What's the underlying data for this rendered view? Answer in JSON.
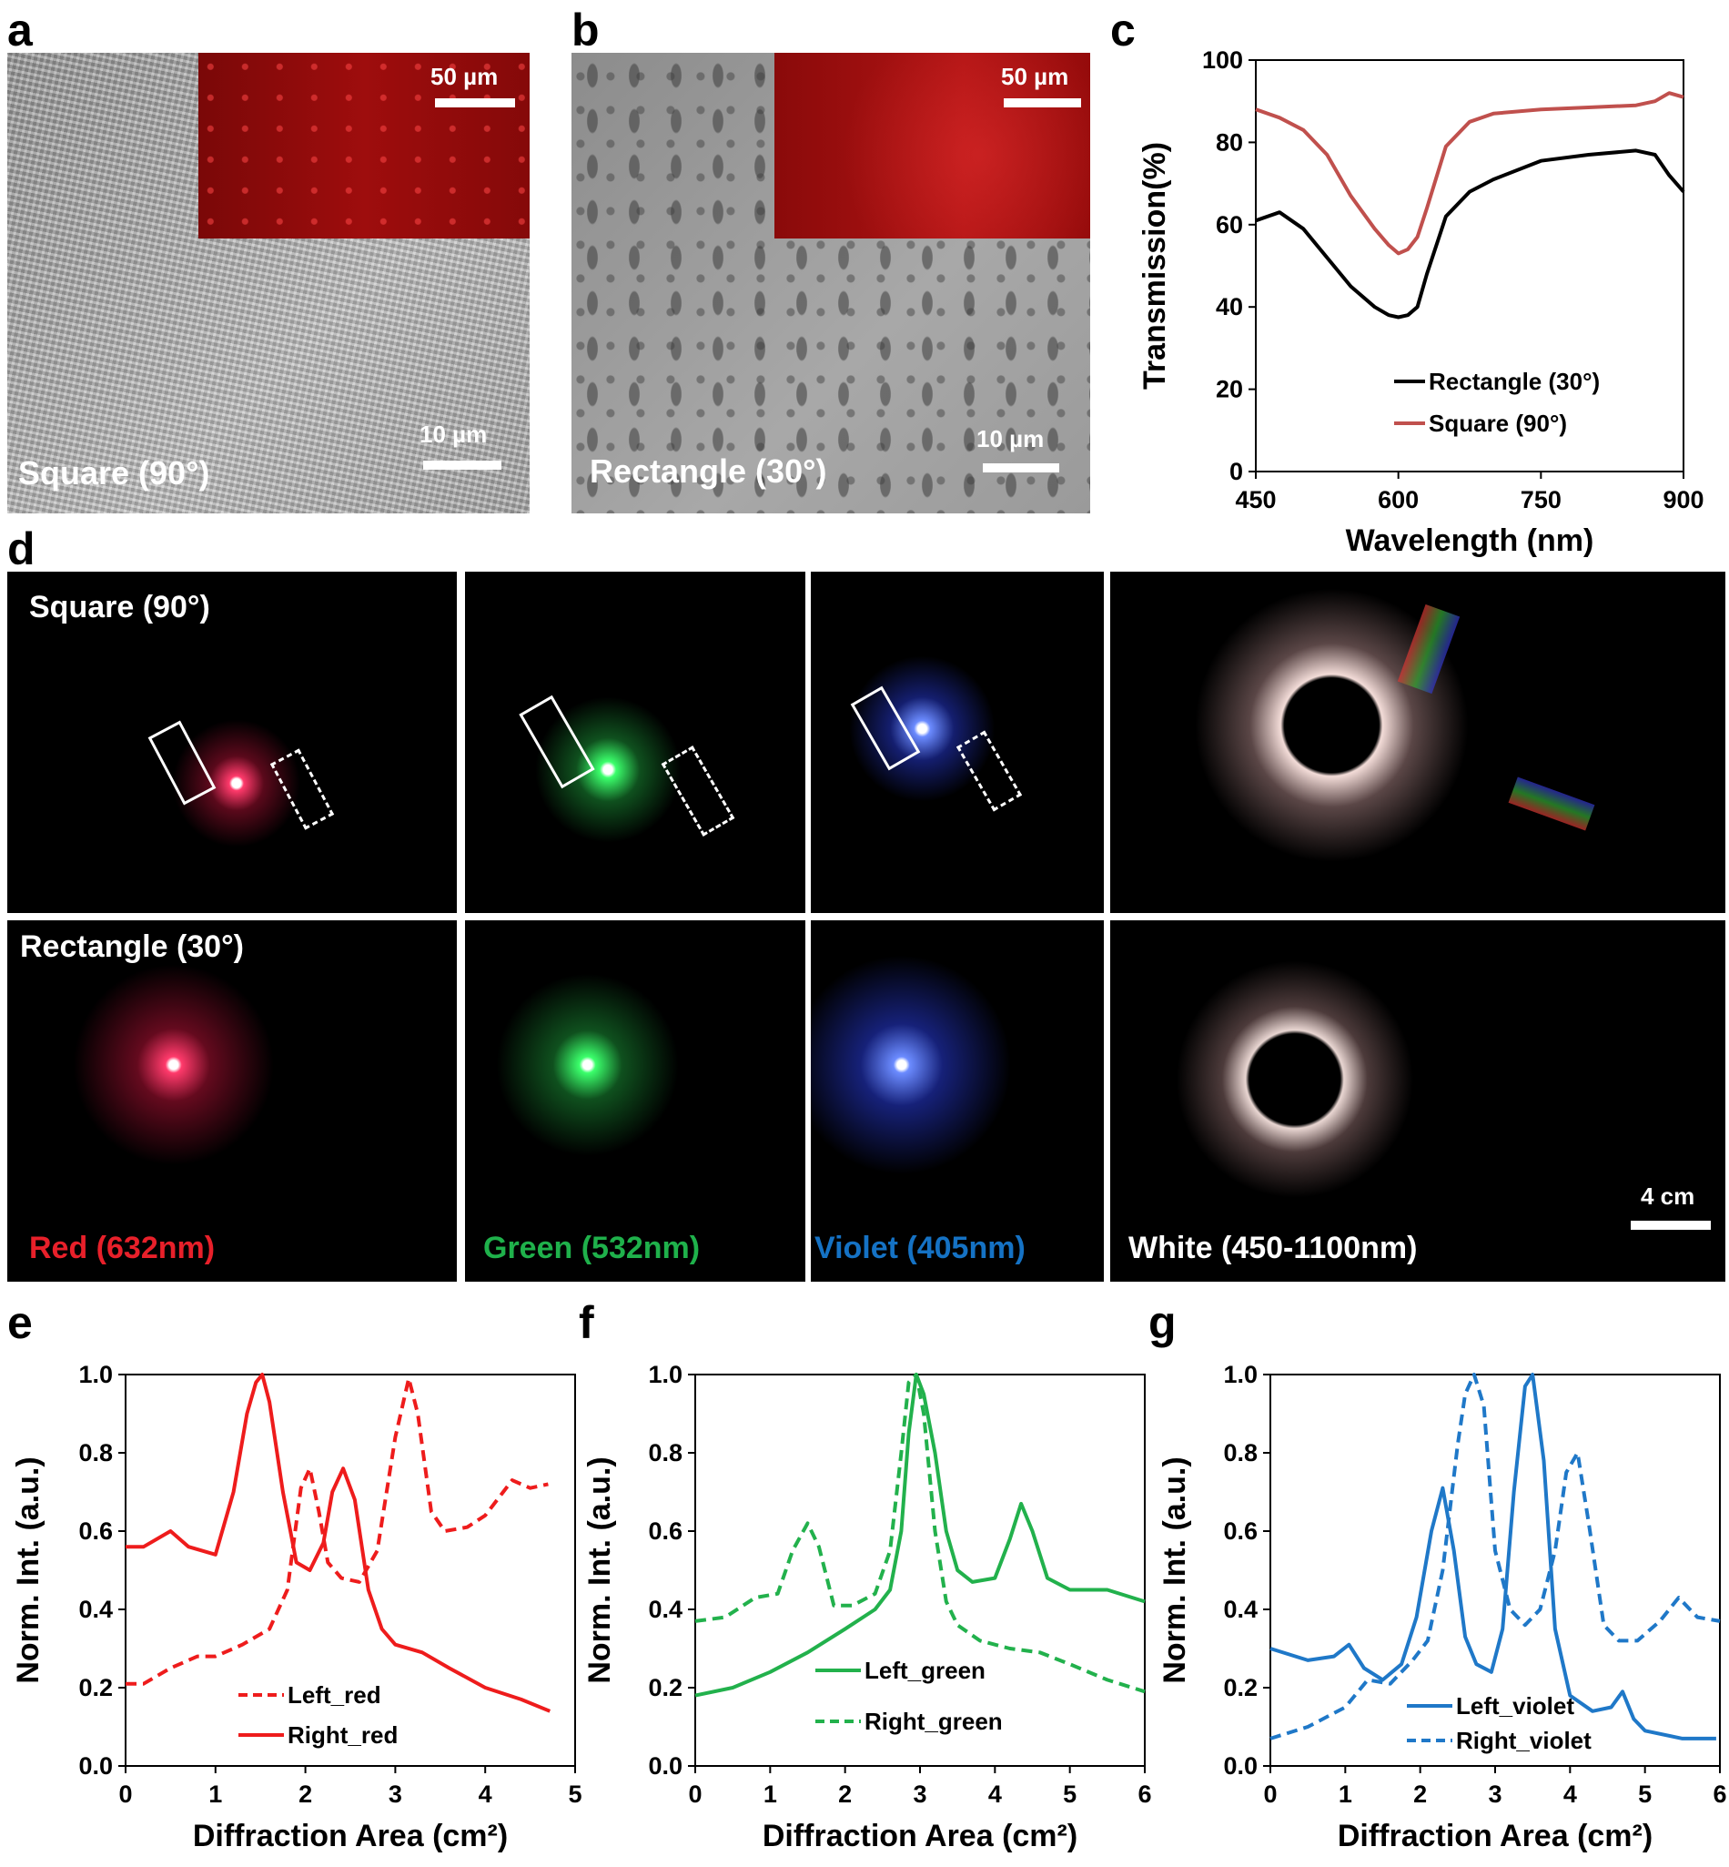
{
  "panels": {
    "a": {
      "label": "a",
      "caption": "Square (90°)",
      "scalebar": "10 µm",
      "inset_scalebar": "50 µm"
    },
    "b": {
      "label": "b",
      "caption": "Rectangle (30°)",
      "scalebar": "10 µm",
      "inset_scalebar": "50 µm"
    },
    "c": {
      "label": "c"
    },
    "d": {
      "label": "d",
      "rows": [
        "Square (90°)",
        "Rectangle (30°)"
      ],
      "columns": [
        {
          "label": "Red (632nm)",
          "color": "#e8202a"
        },
        {
          "label": "Green (532nm)",
          "color": "#1fb14b"
        },
        {
          "label": "Violet (405nm)",
          "color": "#1572c4"
        },
        {
          "label": "White (450-1100nm)",
          "color": "#ffffff"
        }
      ],
      "scalebar": "4 cm"
    },
    "e": {
      "label": "e"
    },
    "f": {
      "label": "f"
    },
    "g": {
      "label": "g"
    }
  },
  "chart_data": [
    {
      "id": "c",
      "type": "line",
      "xlabel": "Wavelength (nm)",
      "ylabel": "Transmission(%)",
      "xlim": [
        450,
        900
      ],
      "ylim": [
        0,
        100
      ],
      "xticks": [
        450,
        600,
        750,
        900
      ],
      "yticks": [
        0,
        20,
        40,
        60,
        80,
        100
      ],
      "legend_position": "bottom-center",
      "series": [
        {
          "name": "Rectangle (30°)",
          "color": "#000000",
          "dash": "solid",
          "x": [
            450,
            475,
            500,
            525,
            550,
            575,
            590,
            600,
            610,
            620,
            630,
            650,
            675,
            700,
            750,
            800,
            850,
            870,
            885,
            900
          ],
          "y": [
            61,
            63,
            59,
            52,
            45,
            40,
            38,
            37.5,
            38,
            40,
            48,
            62,
            68,
            71,
            75.5,
            77,
            78,
            77,
            72,
            68
          ]
        },
        {
          "name": "Square (90°)",
          "color": "#c0504d",
          "dash": "solid",
          "x": [
            450,
            475,
            500,
            525,
            550,
            575,
            590,
            600,
            610,
            620,
            630,
            650,
            675,
            700,
            750,
            800,
            850,
            870,
            885,
            900
          ],
          "y": [
            88,
            86,
            83,
            77,
            67,
            59,
            55,
            53,
            54,
            57,
            64,
            79,
            85,
            87,
            88,
            88.5,
            89,
            90,
            92,
            91
          ]
        }
      ]
    },
    {
      "id": "e",
      "type": "line",
      "xlabel": "Diffraction Area (cm²)",
      "ylabel": "Norm. Int. (a.u.)",
      "xlim": [
        0,
        5
      ],
      "ylim": [
        0,
        1.0
      ],
      "xticks": [
        0,
        1,
        2,
        3,
        4,
        5
      ],
      "yticks": [
        "0.0",
        "0.2",
        "0.4",
        "0.6",
        "0.8",
        "1.0"
      ],
      "legend_position": "bottom-center",
      "series": [
        {
          "name": "Left_red",
          "color": "#ee1c1c",
          "dash": "dashed",
          "x": [
            0,
            0.2,
            0.5,
            0.8,
            1.0,
            1.3,
            1.6,
            1.8,
            1.95,
            2.05,
            2.15,
            2.25,
            2.4,
            2.6,
            2.8,
            3.0,
            3.15,
            3.25,
            3.4,
            3.55,
            3.8,
            4.0,
            4.2,
            4.3,
            4.5,
            4.7
          ],
          "y": [
            0.21,
            0.21,
            0.25,
            0.28,
            0.28,
            0.31,
            0.35,
            0.45,
            0.71,
            0.76,
            0.65,
            0.52,
            0.48,
            0.47,
            0.55,
            0.84,
            0.99,
            0.9,
            0.65,
            0.6,
            0.61,
            0.64,
            0.7,
            0.73,
            0.71,
            0.72
          ]
        },
        {
          "name": "Right_red",
          "color": "#ee1c1c",
          "dash": "solid",
          "x": [
            0,
            0.2,
            0.5,
            0.7,
            1.0,
            1.2,
            1.35,
            1.45,
            1.52,
            1.6,
            1.75,
            1.9,
            2.05,
            2.2,
            2.3,
            2.42,
            2.55,
            2.7,
            2.85,
            3.0,
            3.3,
            3.6,
            4.0,
            4.4,
            4.72
          ],
          "y": [
            0.56,
            0.56,
            0.6,
            0.56,
            0.54,
            0.7,
            0.9,
            0.98,
            1.0,
            0.93,
            0.7,
            0.52,
            0.5,
            0.57,
            0.7,
            0.76,
            0.68,
            0.45,
            0.35,
            0.31,
            0.29,
            0.25,
            0.2,
            0.17,
            0.14
          ]
        }
      ]
    },
    {
      "id": "f",
      "type": "line",
      "xlabel": "Diffraction Area (cm²)",
      "ylabel": "Norm. Int. (a.u.)",
      "xlim": [
        0,
        6
      ],
      "ylim": [
        0,
        1.0
      ],
      "xticks": [
        0,
        1,
        2,
        3,
        4,
        5,
        6
      ],
      "yticks": [
        "0.0",
        "0.2",
        "0.4",
        "0.6",
        "0.8",
        "1.0"
      ],
      "legend_position": "bottom-center",
      "series": [
        {
          "name": "Left_green",
          "color": "#22b14c",
          "dash": "solid",
          "x": [
            0,
            0.5,
            1.0,
            1.5,
            2.0,
            2.4,
            2.6,
            2.75,
            2.85,
            2.95,
            3.05,
            3.2,
            3.35,
            3.5,
            3.7,
            4.0,
            4.2,
            4.35,
            4.5,
            4.7,
            5.0,
            5.5,
            6.0
          ],
          "y": [
            0.18,
            0.2,
            0.24,
            0.29,
            0.35,
            0.4,
            0.45,
            0.6,
            0.85,
            1.0,
            0.95,
            0.8,
            0.6,
            0.5,
            0.47,
            0.48,
            0.58,
            0.67,
            0.6,
            0.48,
            0.45,
            0.45,
            0.42
          ]
        },
        {
          "name": "Right_green",
          "color": "#22b14c",
          "dash": "dashed",
          "x": [
            0,
            0.4,
            0.8,
            1.1,
            1.3,
            1.5,
            1.65,
            1.85,
            2.1,
            2.4,
            2.6,
            2.75,
            2.85,
            2.95,
            3.05,
            3.2,
            3.35,
            3.5,
            3.8,
            4.2,
            4.6,
            5.0,
            5.5,
            6.0
          ],
          "y": [
            0.37,
            0.38,
            0.43,
            0.44,
            0.55,
            0.62,
            0.56,
            0.41,
            0.41,
            0.44,
            0.55,
            0.8,
            0.98,
            1.0,
            0.9,
            0.6,
            0.42,
            0.36,
            0.32,
            0.3,
            0.29,
            0.26,
            0.22,
            0.19
          ]
        }
      ]
    },
    {
      "id": "g",
      "type": "line",
      "xlabel": "Diffraction Area (cm²)",
      "ylabel": "Norm. Int. (a.u.)",
      "xlim": [
        0,
        6
      ],
      "ylim": [
        0,
        1.0
      ],
      "xticks": [
        0,
        1,
        2,
        3,
        4,
        5,
        6
      ],
      "yticks": [
        "0.0",
        "0.2",
        "0.4",
        "0.6",
        "0.8",
        "1.0"
      ],
      "legend_position": "bottom-center",
      "series": [
        {
          "name": "Left_violet",
          "color": "#1f78c8",
          "dash": "solid",
          "x": [
            0,
            0.5,
            0.85,
            1.05,
            1.25,
            1.5,
            1.75,
            1.95,
            2.15,
            2.3,
            2.45,
            2.6,
            2.75,
            2.95,
            3.1,
            3.25,
            3.4,
            3.5,
            3.65,
            3.8,
            4.0,
            4.3,
            4.55,
            4.7,
            4.85,
            5.0,
            5.5,
            5.95
          ],
          "y": [
            0.3,
            0.27,
            0.28,
            0.31,
            0.25,
            0.22,
            0.26,
            0.38,
            0.6,
            0.71,
            0.55,
            0.33,
            0.26,
            0.24,
            0.35,
            0.7,
            0.97,
            1.0,
            0.78,
            0.35,
            0.18,
            0.14,
            0.15,
            0.19,
            0.12,
            0.09,
            0.07,
            0.07
          ]
        },
        {
          "name": "Right_violet",
          "color": "#1f78c8",
          "dash": "dashed",
          "x": [
            0,
            0.5,
            1.0,
            1.3,
            1.6,
            1.9,
            2.1,
            2.3,
            2.5,
            2.6,
            2.72,
            2.85,
            3.0,
            3.2,
            3.4,
            3.6,
            3.8,
            3.95,
            4.1,
            4.25,
            4.45,
            4.65,
            4.9,
            5.2,
            5.45,
            5.7,
            6.0
          ],
          "y": [
            0.07,
            0.1,
            0.15,
            0.22,
            0.21,
            0.27,
            0.32,
            0.5,
            0.82,
            0.95,
            1.0,
            0.92,
            0.55,
            0.4,
            0.36,
            0.4,
            0.55,
            0.75,
            0.8,
            0.62,
            0.36,
            0.32,
            0.32,
            0.37,
            0.43,
            0.38,
            0.37
          ]
        }
      ]
    }
  ]
}
